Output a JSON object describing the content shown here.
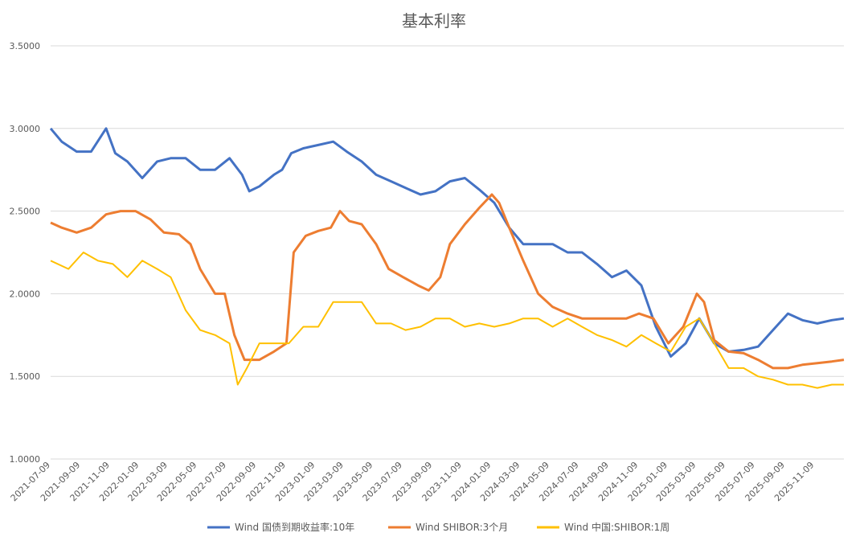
{
  "chart_data": {
    "type": "line",
    "title": "基本利率",
    "ylim": [
      1.0,
      3.5
    ],
    "yticks": [
      "1.0000",
      "1.5000",
      "2.0000",
      "2.5000",
      "3.0000",
      "3.5000"
    ],
    "yticks_values": [
      1.0,
      1.5,
      2.0,
      2.5,
      3.0,
      3.5
    ],
    "xlim": [
      "2021-07-09",
      "2026-01-09"
    ],
    "xticks": [
      "2021-07-09",
      "2021-09-09",
      "2021-11-09",
      "2022-01-09",
      "2022-03-09",
      "2022-05-09",
      "2022-07-09",
      "2022-09-09",
      "2022-11-09",
      "2023-01-09",
      "2023-03-09",
      "2023-05-09",
      "2023-07-09",
      "2023-09-09",
      "2023-11-09",
      "2024-01-09",
      "2024-03-09",
      "2024-05-09",
      "2024-07-09",
      "2024-09-09",
      "2024-11-09",
      "2025-01-09",
      "2025-03-09",
      "2025-05-09",
      "2025-07-09",
      "2025-09-09",
      "2025-11-09"
    ],
    "grid": true,
    "legend_position": "bottom",
    "series": [
      {
        "name": "Wind 国债到期收益率:10年",
        "color": "#4472c4",
        "x": [
          "2021-07-09",
          "2021-08-01",
          "2021-09-01",
          "2021-10-01",
          "2021-11-01",
          "2021-11-20",
          "2021-12-15",
          "2022-01-15",
          "2022-02-15",
          "2022-03-15",
          "2022-04-15",
          "2022-05-15",
          "2022-06-15",
          "2022-07-15",
          "2022-08-10",
          "2022-08-25",
          "2022-09-15",
          "2022-10-15",
          "2022-11-01",
          "2022-11-20",
          "2022-12-15",
          "2023-01-15",
          "2023-02-15",
          "2023-03-15",
          "2023-04-15",
          "2023-05-15",
          "2023-06-15",
          "2023-07-15",
          "2023-08-15",
          "2023-09-15",
          "2023-10-15",
          "2023-11-15",
          "2023-12-15",
          "2024-01-15",
          "2024-02-15",
          "2024-03-15",
          "2024-04-15",
          "2024-05-15",
          "2024-06-15",
          "2024-07-15",
          "2024-08-15",
          "2024-09-15",
          "2024-10-15",
          "2024-11-15",
          "2024-12-15",
          "2025-01-15",
          "2025-02-15",
          "2025-03-15",
          "2025-04-15",
          "2025-05-15",
          "2025-06-15",
          "2025-07-15",
          "2025-08-15",
          "2025-09-15",
          "2025-10-15",
          "2025-11-15",
          "2025-12-15",
          "2026-01-09"
        ],
        "values": [
          3.0,
          2.92,
          2.86,
          2.86,
          3.0,
          2.85,
          2.8,
          2.7,
          2.8,
          2.82,
          2.82,
          2.75,
          2.75,
          2.82,
          2.72,
          2.62,
          2.65,
          2.72,
          2.75,
          2.85,
          2.88,
          2.9,
          2.92,
          2.86,
          2.8,
          2.72,
          2.68,
          2.64,
          2.6,
          2.62,
          2.68,
          2.7,
          2.63,
          2.55,
          2.4,
          2.3,
          2.3,
          2.3,
          2.25,
          2.25,
          2.18,
          2.1,
          2.14,
          2.05,
          1.8,
          1.62,
          1.7,
          1.85,
          1.7,
          1.65,
          1.66,
          1.68,
          1.78,
          1.88,
          1.84,
          1.82,
          1.84,
          1.85
        ]
      },
      {
        "name": "Wind SHIBOR:3个月",
        "color": "#ed7d31",
        "x": [
          "2021-07-09",
          "2021-08-01",
          "2021-09-01",
          "2021-10-01",
          "2021-11-01",
          "2021-12-01",
          "2022-01-01",
          "2022-02-01",
          "2022-03-01",
          "2022-04-01",
          "2022-04-25",
          "2022-05-15",
          "2022-06-15",
          "2022-07-05",
          "2022-07-25",
          "2022-08-15",
          "2022-09-15",
          "2022-10-15",
          "2022-11-10",
          "2022-11-25",
          "2022-12-20",
          "2023-01-15",
          "2023-02-10",
          "2023-03-01",
          "2023-03-20",
          "2023-04-15",
          "2023-05-15",
          "2023-06-10",
          "2023-07-10",
          "2023-08-10",
          "2023-09-01",
          "2023-09-25",
          "2023-10-15",
          "2023-11-15",
          "2023-12-15",
          "2024-01-10",
          "2024-01-25",
          "2024-02-15",
          "2024-03-15",
          "2024-04-15",
          "2024-05-15",
          "2024-06-15",
          "2024-07-15",
          "2024-08-15",
          "2024-09-15",
          "2024-10-15",
          "2024-11-10",
          "2024-12-10",
          "2025-01-10",
          "2025-02-10",
          "2025-03-10",
          "2025-03-25",
          "2025-04-15",
          "2025-05-15",
          "2025-06-15",
          "2025-07-15",
          "2025-08-15",
          "2025-09-15",
          "2025-10-15",
          "2025-11-15",
          "2025-12-15",
          "2026-01-09"
        ],
        "values": [
          2.43,
          2.4,
          2.37,
          2.4,
          2.48,
          2.5,
          2.5,
          2.45,
          2.37,
          2.36,
          2.3,
          2.15,
          2.0,
          2.0,
          1.75,
          1.6,
          1.6,
          1.65,
          1.7,
          2.25,
          2.35,
          2.38,
          2.4,
          2.5,
          2.44,
          2.42,
          2.3,
          2.15,
          2.1,
          2.05,
          2.02,
          2.1,
          2.3,
          2.42,
          2.52,
          2.6,
          2.55,
          2.4,
          2.2,
          2.0,
          1.92,
          1.88,
          1.85,
          1.85,
          1.85,
          1.85,
          1.88,
          1.85,
          1.7,
          1.8,
          2.0,
          1.95,
          1.72,
          1.65,
          1.64,
          1.6,
          1.55,
          1.55,
          1.57,
          1.58,
          1.59,
          1.6
        ]
      },
      {
        "name": "Wind 中国:SHIBOR:1周",
        "color": "#ffc000",
        "x": [
          "2021-07-09",
          "2021-08-15",
          "2021-09-15",
          "2021-10-15",
          "2021-11-15",
          "2021-12-15",
          "2022-01-15",
          "2022-02-15",
          "2022-03-15",
          "2022-04-15",
          "2022-05-15",
          "2022-06-15",
          "2022-07-15",
          "2022-08-01",
          "2022-08-20",
          "2022-09-15",
          "2022-10-15",
          "2022-11-15",
          "2022-12-15",
          "2023-01-15",
          "2023-02-15",
          "2023-03-15",
          "2023-04-15",
          "2023-05-15",
          "2023-06-15",
          "2023-07-15",
          "2023-08-15",
          "2023-09-15",
          "2023-10-15",
          "2023-11-15",
          "2023-12-15",
          "2024-01-15",
          "2024-02-15",
          "2024-03-15",
          "2024-04-15",
          "2024-05-15",
          "2024-06-15",
          "2024-07-15",
          "2024-08-15",
          "2024-09-15",
          "2024-10-15",
          "2024-11-15",
          "2024-12-15",
          "2025-01-15",
          "2025-02-15",
          "2025-03-15",
          "2025-04-15",
          "2025-05-15",
          "2025-06-15",
          "2025-07-15",
          "2025-08-15",
          "2025-09-15",
          "2025-10-15",
          "2025-11-15",
          "2025-12-15",
          "2026-01-09"
        ],
        "values": [
          2.2,
          2.15,
          2.25,
          2.2,
          2.18,
          2.1,
          2.2,
          2.15,
          2.1,
          1.9,
          1.78,
          1.75,
          1.7,
          1.45,
          1.55,
          1.7,
          1.7,
          1.7,
          1.8,
          1.8,
          1.95,
          1.95,
          1.95,
          1.82,
          1.82,
          1.78,
          1.8,
          1.85,
          1.85,
          1.8,
          1.82,
          1.8,
          1.82,
          1.85,
          1.85,
          1.8,
          1.85,
          1.8,
          1.75,
          1.72,
          1.68,
          1.75,
          1.7,
          1.65,
          1.8,
          1.85,
          1.7,
          1.55,
          1.55,
          1.5,
          1.48,
          1.45,
          1.45,
          1.43,
          1.45,
          1.45
        ]
      }
    ]
  }
}
